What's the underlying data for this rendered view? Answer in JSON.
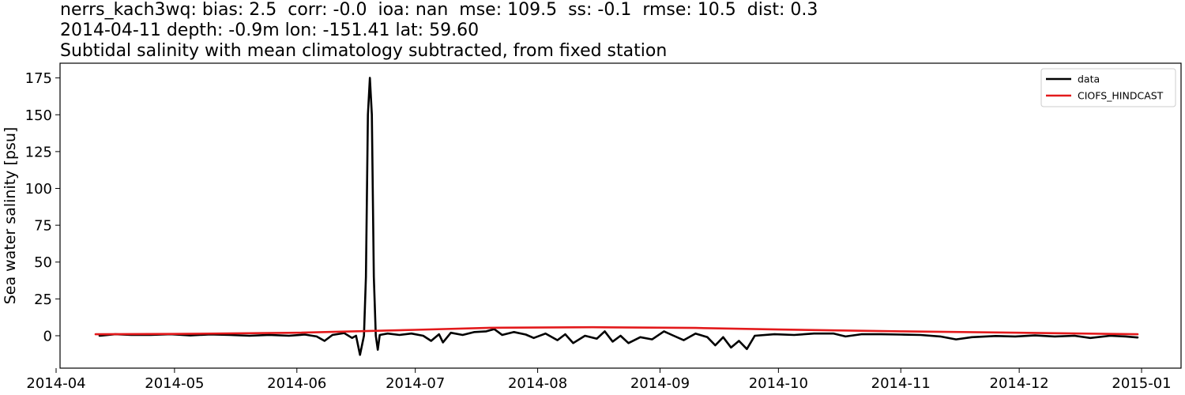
{
  "title": {
    "line1": "nerrs_kach3wq: bias: 2.5  corr: -0.0  ioa: nan  mse: 109.5  ss: -0.1  rmse: 10.5  dist: 0.3",
    "line2": "2014-04-11 depth: -0.9m lon: -151.41 lat: 59.60",
    "line3": "Subtidal salinity with mean climatology subtracted, from fixed station"
  },
  "colors": {
    "data": "#000000",
    "model": "#e31a1c"
  },
  "chart_data": {
    "type": "line",
    "ylabel": "Sea water salinity [psu]",
    "xlabel": "",
    "ylim": [
      -22,
      185
    ],
    "xlim": [
      "2014-04-02",
      "2015-01-11"
    ],
    "x_ticks": [
      "2014-04",
      "2014-05",
      "2014-06",
      "2014-07",
      "2014-08",
      "2014-09",
      "2014-10",
      "2014-11",
      "2014-12",
      "2015-01"
    ],
    "y_ticks": [
      0,
      25,
      50,
      75,
      100,
      125,
      150,
      175
    ],
    "grid": false,
    "legend_position": "top-right",
    "series": [
      {
        "name": "data",
        "points": [
          [
            "2014-04-12",
            0.0
          ],
          [
            "2014-04-16",
            1.0
          ],
          [
            "2014-04-20",
            0.5
          ],
          [
            "2014-04-25",
            0.6
          ],
          [
            "2014-04-30",
            1.0
          ],
          [
            "2014-05-05",
            0.2
          ],
          [
            "2014-05-10",
            0.9
          ],
          [
            "2014-05-15",
            0.5
          ],
          [
            "2014-05-20",
            0.0
          ],
          [
            "2014-05-25",
            0.6
          ],
          [
            "2014-05-30",
            0.0
          ],
          [
            "2014-06-03",
            0.8
          ],
          [
            "2014-06-06",
            -0.5
          ],
          [
            "2014-06-08",
            -3.5
          ],
          [
            "2014-06-10",
            0.5
          ],
          [
            "2014-06-13",
            1.8
          ],
          [
            "2014-06-15",
            -1.5
          ],
          [
            "2014-06-16",
            0.0
          ],
          [
            "2014-06-17",
            -13.0
          ],
          [
            "2014-06-18",
            0.0
          ],
          [
            "2014-06-18.5",
            40.0
          ],
          [
            "2014-06-19",
            150.0
          ],
          [
            "2014-06-19.5",
            175.0
          ],
          [
            "2014-06-20",
            150.0
          ],
          [
            "2014-06-20.5",
            40.0
          ],
          [
            "2014-06-21",
            0.0
          ],
          [
            "2014-06-21.5",
            -9.5
          ],
          [
            "2014-06-22",
            0.5
          ],
          [
            "2014-06-24",
            1.5
          ],
          [
            "2014-06-27",
            0.5
          ],
          [
            "2014-06-30",
            1.5
          ],
          [
            "2014-07-03",
            0.0
          ],
          [
            "2014-07-05",
            -3.5
          ],
          [
            "2014-07-07",
            1.0
          ],
          [
            "2014-07-08",
            -4.5
          ],
          [
            "2014-07-10",
            2.0
          ],
          [
            "2014-07-13",
            0.5
          ],
          [
            "2014-07-16",
            2.5
          ],
          [
            "2014-07-19",
            3.0
          ],
          [
            "2014-07-21",
            4.5
          ],
          [
            "2014-07-23",
            0.5
          ],
          [
            "2014-07-26",
            2.5
          ],
          [
            "2014-07-29",
            0.8
          ],
          [
            "2014-07-31",
            -1.5
          ],
          [
            "2014-08-03",
            1.5
          ],
          [
            "2014-08-06",
            -3.0
          ],
          [
            "2014-08-08",
            1.0
          ],
          [
            "2014-08-10",
            -5.0
          ],
          [
            "2014-08-13",
            0.0
          ],
          [
            "2014-08-16",
            -2.0
          ],
          [
            "2014-08-18",
            3.0
          ],
          [
            "2014-08-20",
            -4.0
          ],
          [
            "2014-08-22",
            0.0
          ],
          [
            "2014-08-24",
            -5.0
          ],
          [
            "2014-08-27",
            -1.0
          ],
          [
            "2014-08-30",
            -2.5
          ],
          [
            "2014-09-02",
            3.0
          ],
          [
            "2014-09-04",
            0.5
          ],
          [
            "2014-09-07",
            -3.0
          ],
          [
            "2014-09-10",
            1.5
          ],
          [
            "2014-09-13",
            -1.0
          ],
          [
            "2014-09-15",
            -6.5
          ],
          [
            "2014-09-17",
            -1.0
          ],
          [
            "2014-09-19",
            -8.0
          ],
          [
            "2014-09-21",
            -3.5
          ],
          [
            "2014-09-23",
            -9.0
          ],
          [
            "2014-09-25",
            0.0
          ],
          [
            "2014-09-30",
            1.0
          ],
          [
            "2014-10-05",
            0.5
          ],
          [
            "2014-10-10",
            1.5
          ],
          [
            "2014-10-15",
            1.5
          ],
          [
            "2014-10-18",
            -0.5
          ],
          [
            "2014-10-22",
            1.0
          ],
          [
            "2014-10-27",
            1.0
          ],
          [
            "2014-11-01",
            0.8
          ],
          [
            "2014-11-06",
            0.5
          ],
          [
            "2014-11-11",
            -0.5
          ],
          [
            "2014-11-15",
            -2.5
          ],
          [
            "2014-11-19",
            -1.0
          ],
          [
            "2014-11-25",
            -0.2
          ],
          [
            "2014-11-30",
            -0.5
          ],
          [
            "2014-12-05",
            0.2
          ],
          [
            "2014-12-10",
            -0.5
          ],
          [
            "2014-12-15",
            0.0
          ],
          [
            "2014-12-19",
            -1.5
          ],
          [
            "2014-12-24",
            0.0
          ],
          [
            "2014-12-28",
            -0.5
          ],
          [
            "2014-12-31",
            -1.2
          ]
        ]
      },
      {
        "name": "CIOFS_HINDCAST",
        "points": [
          [
            "2014-04-11",
            1.0
          ],
          [
            "2014-05-01",
            1.2
          ],
          [
            "2014-06-01",
            2.0
          ],
          [
            "2014-07-01",
            4.0
          ],
          [
            "2014-07-20",
            5.4
          ],
          [
            "2014-08-15",
            5.8
          ],
          [
            "2014-09-10",
            5.3
          ],
          [
            "2014-10-01",
            4.2
          ],
          [
            "2014-11-01",
            3.0
          ],
          [
            "2014-12-01",
            2.0
          ],
          [
            "2014-12-31",
            1.0
          ]
        ]
      }
    ]
  }
}
